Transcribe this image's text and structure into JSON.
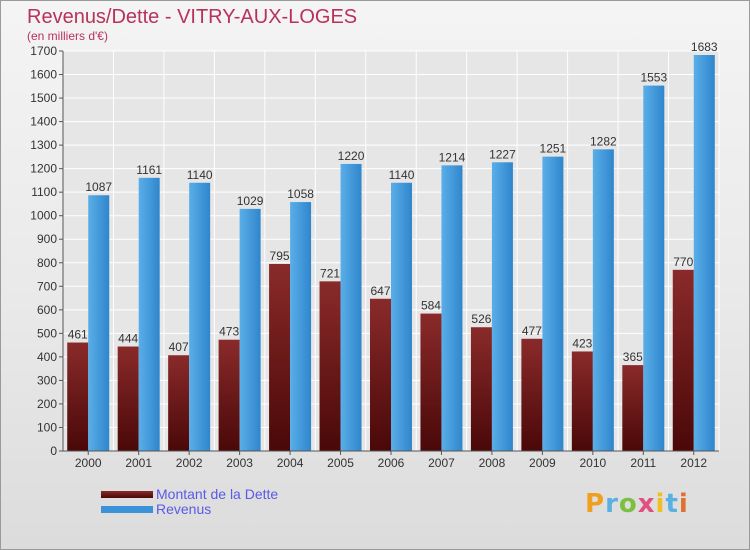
{
  "title": "Revenus/Dette - VITRY-AUX-LOGES",
  "subtitle": "(en milliers d'€)",
  "logo_text": "Proxiti",
  "colors": {
    "dette": "#7a1a1a",
    "revenus": "#3a93d8",
    "title": "#b8325a",
    "legend_text": "#5a5ae6"
  },
  "chart_data": {
    "type": "bar",
    "title": "Revenus/Dette - VITRY-AUX-LOGES",
    "subtitle": "(en milliers d'€)",
    "categories": [
      "2000",
      "2001",
      "2002",
      "2003",
      "2004",
      "2005",
      "2006",
      "2007",
      "2008",
      "2009",
      "2010",
      "2011",
      "2012"
    ],
    "series": [
      {
        "name": "Montant de la Dette",
        "values": [
          461,
          444,
          407,
          473,
          795,
          721,
          647,
          584,
          526,
          477,
          423,
          365,
          770
        ]
      },
      {
        "name": "Revenus",
        "values": [
          1087,
          1161,
          1140,
          1029,
          1058,
          1220,
          1140,
          1214,
          1227,
          1251,
          1282,
          1553,
          1683
        ]
      }
    ],
    "ylim": [
      0,
      1700
    ],
    "yticks": [
      0,
      100,
      200,
      300,
      400,
      500,
      600,
      700,
      800,
      900,
      1000,
      1100,
      1200,
      1300,
      1400,
      1500,
      1600,
      1700
    ],
    "grid": true,
    "legend_position": "bottom-left"
  }
}
